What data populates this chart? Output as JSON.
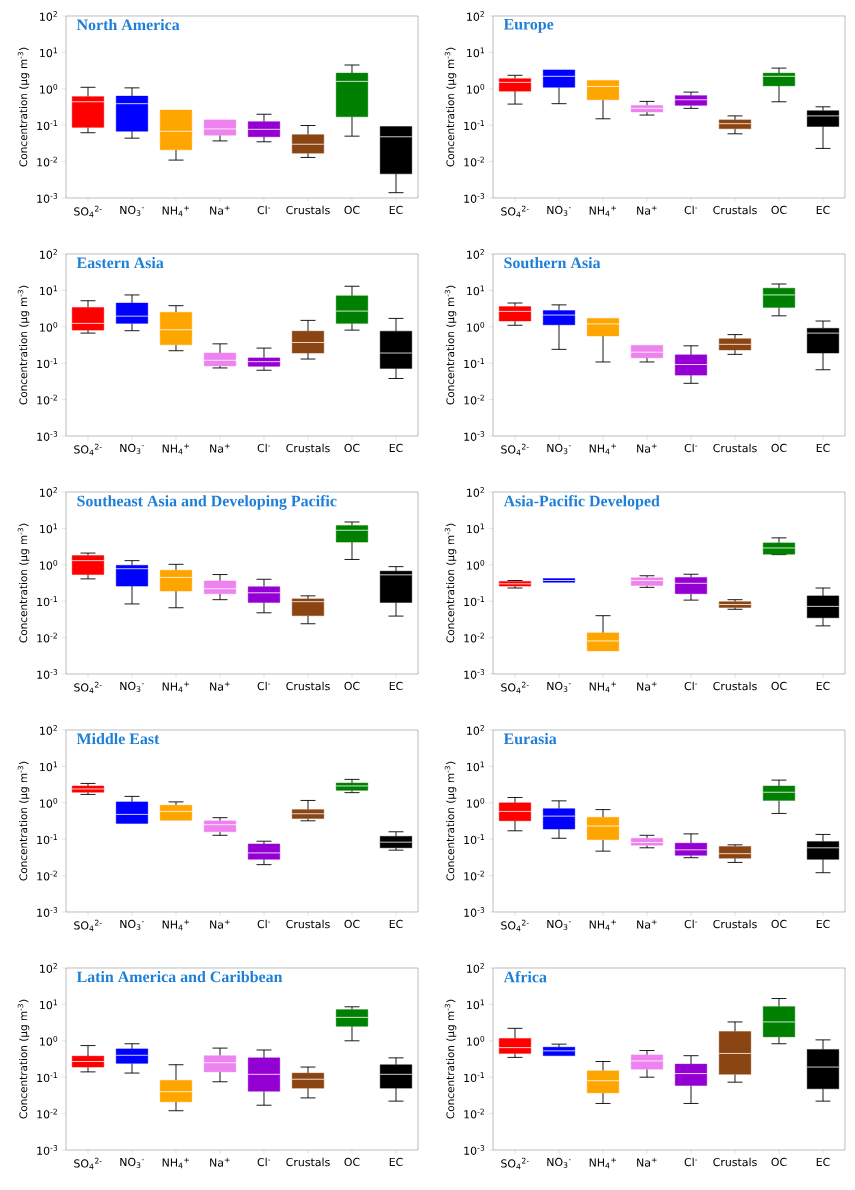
{
  "chart_data": [
    {
      "type": "box",
      "title": "North America",
      "ylabel": "Concentration (μg m$^{-3}$)",
      "log": true,
      "ylim": [
        0.001,
        100
      ],
      "yticks": [
        {
          "value": 0.001,
          "label": "10$^{-3}$"
        },
        {
          "value": 0.01,
          "label": "10$^{-2}$"
        },
        {
          "value": 0.1,
          "label": "10$^{-1}$"
        },
        {
          "value": 1,
          "label": "10$^{0}$"
        },
        {
          "value": 10,
          "label": "10$^{1}$"
        },
        {
          "value": 100,
          "label": "10$^{2}$"
        }
      ],
      "categories": [
        "SO$_{4}$$^{2-}$",
        "NO$_{3}$$^{-}$",
        "NH$_{4}$$^{+}$",
        "Na$^{+}$",
        "Cl$^{-}$",
        "Crustals",
        "OC",
        "EC"
      ],
      "colors": [
        "#ff0000",
        "#0000ff",
        "#ffa500",
        "#ee82ee",
        "#9400d3",
        "#8b4513",
        "#008000",
        "#000000"
      ],
      "boxes": [
        {
          "low": 0.062,
          "q1": 0.087,
          "median": 0.44,
          "q3": 0.61,
          "high": 1.1
        },
        {
          "low": 0.044,
          "q1": 0.068,
          "median": 0.39,
          "q3": 0.63,
          "high": 1.06
        },
        {
          "low": 0.011,
          "q1": 0.021,
          "median": 0.068,
          "q3": 0.26,
          "high": 0.26
        },
        {
          "low": 0.037,
          "q1": 0.053,
          "median": 0.079,
          "q3": 0.14,
          "high": 0.14
        },
        {
          "low": 0.035,
          "q1": 0.048,
          "median": 0.077,
          "q3": 0.125,
          "high": 0.2
        },
        {
          "low": 0.013,
          "q1": 0.017,
          "median": 0.03,
          "q3": 0.055,
          "high": 0.098
        },
        {
          "low": 0.05,
          "q1": 0.17,
          "median": 1.6,
          "q3": 2.7,
          "high": 4.5
        },
        {
          "low": 0.0014,
          "q1": 0.0046,
          "median": 0.048,
          "q3": 0.092,
          "high": 0.092
        }
      ]
    },
    {
      "type": "box",
      "title": "Europe",
      "ylabel": "Concentration (μg m$^{-3}$)",
      "log": true,
      "ylim": [
        0.001,
        100
      ],
      "yticks": [
        {
          "value": 0.001,
          "label": "10$^{-3}$"
        },
        {
          "value": 0.01,
          "label": "10$^{-2}$"
        },
        {
          "value": 0.1,
          "label": "10$^{-1}$"
        },
        {
          "value": 1,
          "label": "10$^{0}$"
        },
        {
          "value": 10,
          "label": "10$^{1}$"
        },
        {
          "value": 100,
          "label": "10$^{2}$"
        }
      ],
      "categories": [
        "SO$_{4}$$^{2-}$",
        "NO$_{3}$$^{-}$",
        "NH$_{4}$$^{+}$",
        "Na$^{+}$",
        "Cl$^{-}$",
        "Crustals",
        "OC",
        "EC"
      ],
      "colors": [
        "#ff0000",
        "#0000ff",
        "#ffa500",
        "#ee82ee",
        "#9400d3",
        "#8b4513",
        "#008000",
        "#000000"
      ],
      "boxes": [
        {
          "low": 0.38,
          "q1": 0.86,
          "median": 1.5,
          "q3": 1.9,
          "high": 2.35
        },
        {
          "low": 0.39,
          "q1": 1.1,
          "median": 2.2,
          "q3": 3.3,
          "high": 3.3
        },
        {
          "low": 0.15,
          "q1": 0.5,
          "median": 1.16,
          "q3": 1.7,
          "high": 1.7
        },
        {
          "low": 0.19,
          "q1": 0.23,
          "median": 0.29,
          "q3": 0.35,
          "high": 0.45
        },
        {
          "low": 0.29,
          "q1": 0.35,
          "median": 0.5,
          "q3": 0.65,
          "high": 0.81
        },
        {
          "low": 0.058,
          "q1": 0.08,
          "median": 0.11,
          "q3": 0.14,
          "high": 0.18
        },
        {
          "low": 0.44,
          "q1": 1.2,
          "median": 2.2,
          "q3": 2.7,
          "high": 3.7
        },
        {
          "low": 0.023,
          "q1": 0.092,
          "median": 0.18,
          "q3": 0.25,
          "high": 0.32
        }
      ]
    },
    {
      "type": "box",
      "title": "Eastern Asia",
      "ylabel": "Concentration (μg m$^{-3}$)",
      "log": true,
      "ylim": [
        0.001,
        100
      ],
      "yticks": [
        {
          "value": 0.001,
          "label": "10$^{-3}$"
        },
        {
          "value": 0.01,
          "label": "10$^{-2}$"
        },
        {
          "value": 0.1,
          "label": "10$^{-1}$"
        },
        {
          "value": 1,
          "label": "10$^{0}$"
        },
        {
          "value": 10,
          "label": "10$^{1}$"
        },
        {
          "value": 100,
          "label": "10$^{2}$"
        }
      ],
      "categories": [
        "SO$_{4}$$^{2-}$",
        "NO$_{3}$$^{-}$",
        "NH$_{4}$$^{+}$",
        "Na$^{+}$",
        "Cl$^{-}$",
        "Crustals",
        "OC",
        "EC"
      ],
      "colors": [
        "#ff0000",
        "#0000ff",
        "#ffa500",
        "#ee82ee",
        "#9400d3",
        "#8b4513",
        "#008000",
        "#000000"
      ],
      "boxes": [
        {
          "low": 0.67,
          "q1": 0.81,
          "median": 1.24,
          "q3": 3.4,
          "high": 5.2
        },
        {
          "low": 0.78,
          "q1": 1.24,
          "median": 1.96,
          "q3": 4.5,
          "high": 7.5
        },
        {
          "low": 0.22,
          "q1": 0.32,
          "median": 0.83,
          "q3": 2.5,
          "high": 3.8
        },
        {
          "low": 0.074,
          "q1": 0.084,
          "median": 0.12,
          "q3": 0.19,
          "high": 0.34
        },
        {
          "low": 0.064,
          "q1": 0.082,
          "median": 0.11,
          "q3": 0.14,
          "high": 0.26
        },
        {
          "low": 0.13,
          "q1": 0.19,
          "median": 0.37,
          "q3": 0.76,
          "high": 1.5
        },
        {
          "low": 0.81,
          "q1": 1.24,
          "median": 2.7,
          "q3": 7.1,
          "high": 13
        },
        {
          "low": 0.038,
          "q1": 0.072,
          "median": 0.19,
          "q3": 0.76,
          "high": 1.7
        }
      ]
    },
    {
      "type": "box",
      "title": "Southern Asia",
      "ylabel": "Concentration (μg m$^{-3}$)",
      "log": true,
      "ylim": [
        0.001,
        100
      ],
      "yticks": [
        {
          "value": 0.001,
          "label": "10$^{-3}$"
        },
        {
          "value": 0.01,
          "label": "10$^{-2}$"
        },
        {
          "value": 0.1,
          "label": "10$^{-1}$"
        },
        {
          "value": 1,
          "label": "10$^{0}$"
        },
        {
          "value": 10,
          "label": "10$^{1}$"
        },
        {
          "value": 100,
          "label": "10$^{2}$"
        }
      ],
      "categories": [
        "SO$_{4}$$^{2-}$",
        "NO$_{3}$$^{-}$",
        "NH$_{4}$$^{+}$",
        "Na$^{+}$",
        "Cl$^{-}$",
        "Crustals",
        "OC",
        "EC"
      ],
      "colors": [
        "#ff0000",
        "#0000ff",
        "#ffa500",
        "#ee82ee",
        "#9400d3",
        "#8b4513",
        "#008000",
        "#000000"
      ],
      "boxes": [
        {
          "low": 1.1,
          "q1": 1.44,
          "median": 2.65,
          "q3": 3.6,
          "high": 4.5
        },
        {
          "low": 0.24,
          "q1": 1.13,
          "median": 2.1,
          "q3": 2.8,
          "high": 4
        },
        {
          "low": 0.108,
          "q1": 0.56,
          "median": 1.2,
          "q3": 1.7,
          "high": 1.7
        },
        {
          "low": 0.108,
          "q1": 0.14,
          "median": 0.2,
          "q3": 0.31,
          "high": 0.31
        },
        {
          "low": 0.028,
          "q1": 0.047,
          "median": 0.092,
          "q3": 0.17,
          "high": 0.3
        },
        {
          "low": 0.175,
          "q1": 0.23,
          "median": 0.33,
          "q3": 0.47,
          "high": 0.61
        },
        {
          "low": 2.0,
          "q1": 3.4,
          "median": 7.5,
          "q3": 11.5,
          "high": 15
        },
        {
          "low": 0.066,
          "q1": 0.19,
          "median": 0.67,
          "q3": 0.91,
          "high": 1.44
        }
      ]
    },
    {
      "type": "box",
      "title": "Southeast Asia and Developing Pacific",
      "ylabel": "Concentration (μg m$^{-3}$)",
      "log": true,
      "ylim": [
        0.001,
        100
      ],
      "yticks": [
        {
          "value": 0.001,
          "label": "10$^{-3}$"
        },
        {
          "value": 0.01,
          "label": "10$^{-2}$"
        },
        {
          "value": 0.1,
          "label": "10$^{-1}$"
        },
        {
          "value": 1,
          "label": "10$^{0}$"
        },
        {
          "value": 10,
          "label": "10$^{1}$"
        },
        {
          "value": 100,
          "label": "10$^{2}$"
        }
      ],
      "categories": [
        "SO$_{4}$$^{2-}$",
        "NO$_{3}$$^{-}$",
        "NH$_{4}$$^{+}$",
        "Na$^{+}$",
        "Cl$^{-}$",
        "Crustals",
        "OC",
        "EC"
      ],
      "colors": [
        "#ff0000",
        "#0000ff",
        "#ffa500",
        "#ee82ee",
        "#9400d3",
        "#8b4513",
        "#008000",
        "#000000"
      ],
      "boxes": [
        {
          "low": 0.41,
          "q1": 0.54,
          "median": 1.3,
          "q3": 1.8,
          "high": 2.1
        },
        {
          "low": 0.084,
          "q1": 0.26,
          "median": 0.78,
          "q3": 0.97,
          "high": 1.3
        },
        {
          "low": 0.066,
          "q1": 0.19,
          "median": 0.45,
          "q3": 0.71,
          "high": 1.03
        },
        {
          "low": 0.11,
          "q1": 0.16,
          "median": 0.22,
          "q3": 0.36,
          "high": 0.54
        },
        {
          "low": 0.048,
          "q1": 0.092,
          "median": 0.17,
          "q3": 0.25,
          "high": 0.4
        },
        {
          "low": 0.024,
          "q1": 0.04,
          "median": 0.097,
          "q3": 0.116,
          "high": 0.14
        },
        {
          "low": 1.4,
          "q1": 4.2,
          "median": 8.9,
          "q3": 12,
          "high": 15
        },
        {
          "low": 0.039,
          "q1": 0.092,
          "median": 0.53,
          "q3": 0.67,
          "high": 0.89
        }
      ]
    },
    {
      "type": "box",
      "title": "Asia-Pacific Developed",
      "ylabel": "Concentration (μg m$^{-3}$)",
      "log": true,
      "ylim": [
        0.001,
        100
      ],
      "yticks": [
        {
          "value": 0.001,
          "label": "10$^{-3}$"
        },
        {
          "value": 0.01,
          "label": "10$^{-2}$"
        },
        {
          "value": 0.1,
          "label": "10$^{-1}$"
        },
        {
          "value": 1,
          "label": "10$^{0}$"
        },
        {
          "value": 10,
          "label": "10$^{1}$"
        },
        {
          "value": 100,
          "label": "10$^{2}$"
        }
      ],
      "categories": [
        "SO$_{4}$$^{2-}$",
        "NO$_{3}$$^{-}$",
        "NH$_{4}$$^{+}$",
        "Na$^{+}$",
        "Cl$^{-}$",
        "Crustals",
        "OC",
        "EC"
      ],
      "colors": [
        "#ff0000",
        "#0000ff",
        "#ffa500",
        "#ee82ee",
        "#9400d3",
        "#8b4513",
        "#008000",
        "#000000"
      ],
      "boxes": [
        {
          "low": 0.23,
          "q1": 0.26,
          "median": 0.3,
          "q3": 0.35,
          "high": 0.37
        },
        {
          "low": 0.33,
          "q1": 0.33,
          "median": 0.37,
          "q3": 0.42,
          "high": 0.42
        },
        {
          "low": 0.0043,
          "q1": 0.0043,
          "median": 0.0081,
          "q3": 0.0135,
          "high": 0.04
        },
        {
          "low": 0.24,
          "q1": 0.27,
          "median": 0.37,
          "q3": 0.44,
          "high": 0.5
        },
        {
          "low": 0.107,
          "q1": 0.16,
          "median": 0.31,
          "q3": 0.45,
          "high": 0.55
        },
        {
          "low": 0.06,
          "q1": 0.067,
          "median": 0.081,
          "q3": 0.097,
          "high": 0.11
        },
        {
          "low": 1.9,
          "q1": 1.95,
          "median": 2.9,
          "q3": 4.0,
          "high": 5.5
        },
        {
          "low": 0.021,
          "q1": 0.035,
          "median": 0.072,
          "q3": 0.14,
          "high": 0.23
        }
      ]
    },
    {
      "type": "box",
      "title": "Middle East",
      "ylabel": "Concentration (μg m$^{-3}$)",
      "log": true,
      "ylim": [
        0.001,
        100
      ],
      "yticks": [
        {
          "value": 0.001,
          "label": "10$^{-3}$"
        },
        {
          "value": 0.01,
          "label": "10$^{-2}$"
        },
        {
          "value": 0.1,
          "label": "10$^{-1}$"
        },
        {
          "value": 1,
          "label": "10$^{0}$"
        },
        {
          "value": 10,
          "label": "10$^{1}$"
        },
        {
          "value": 100,
          "label": "10$^{2}$"
        }
      ],
      "categories": [
        "SO$_{4}$$^{2-}$",
        "NO$_{3}$$^{-}$",
        "NH$_{4}$$^{+}$",
        "Na$^{+}$",
        "Cl$^{-}$",
        "Crustals",
        "OC",
        "EC"
      ],
      "colors": [
        "#ff0000",
        "#0000ff",
        "#ffa500",
        "#ee82ee",
        "#9400d3",
        "#8b4513",
        "#008000",
        "#000000"
      ],
      "boxes": [
        {
          "low": 1.7,
          "q1": 1.95,
          "median": 2.4,
          "q3": 2.9,
          "high": 3.4
        },
        {
          "low": 0.27,
          "q1": 0.27,
          "median": 0.48,
          "q3": 1.06,
          "high": 1.5
        },
        {
          "low": 0.33,
          "q1": 0.33,
          "median": 0.58,
          "q3": 0.86,
          "high": 1.06
        },
        {
          "low": 0.128,
          "q1": 0.16,
          "median": 0.25,
          "q3": 0.32,
          "high": 0.39
        },
        {
          "low": 0.02,
          "q1": 0.028,
          "median": 0.042,
          "q3": 0.074,
          "high": 0.088
        },
        {
          "low": 0.32,
          "q1": 0.37,
          "median": 0.5,
          "q3": 0.65,
          "high": 1.16
        },
        {
          "low": 1.9,
          "q1": 2.2,
          "median": 2.9,
          "q3": 3.5,
          "high": 4.4
        },
        {
          "low": 0.05,
          "q1": 0.058,
          "median": 0.083,
          "q3": 0.12,
          "high": 0.16
        }
      ]
    },
    {
      "type": "box",
      "title": "Eurasia",
      "ylabel": "Concentration (μg m$^{-3}$)",
      "log": true,
      "ylim": [
        0.001,
        100
      ],
      "yticks": [
        {
          "value": 0.001,
          "label": "10$^{-3}$"
        },
        {
          "value": 0.01,
          "label": "10$^{-2}$"
        },
        {
          "value": 0.1,
          "label": "10$^{-1}$"
        },
        {
          "value": 1,
          "label": "10$^{0}$"
        },
        {
          "value": 10,
          "label": "10$^{1}$"
        },
        {
          "value": 100,
          "label": "10$^{2}$"
        }
      ],
      "categories": [
        "SO$_{4}$$^{2-}$",
        "NO$_{3}$$^{-}$",
        "NH$_{4}$$^{+}$",
        "Na$^{+}$",
        "Cl$^{-}$",
        "Crustals",
        "OC",
        "EC"
      ],
      "colors": [
        "#ff0000",
        "#0000ff",
        "#ffa500",
        "#ee82ee",
        "#9400d3",
        "#8b4513",
        "#008000",
        "#000000"
      ],
      "boxes": [
        {
          "low": 0.17,
          "q1": 0.32,
          "median": 0.58,
          "q3": 1.0,
          "high": 1.4
        },
        {
          "low": 0.106,
          "q1": 0.19,
          "median": 0.43,
          "q3": 0.69,
          "high": 1.13
        },
        {
          "low": 0.047,
          "q1": 0.097,
          "median": 0.23,
          "q3": 0.4,
          "high": 0.65
        },
        {
          "low": 0.058,
          "q1": 0.068,
          "median": 0.081,
          "q3": 0.106,
          "high": 0.128
        },
        {
          "low": 0.031,
          "q1": 0.036,
          "median": 0.051,
          "q3": 0.078,
          "high": 0.14
        },
        {
          "low": 0.023,
          "q1": 0.03,
          "median": 0.04,
          "q3": 0.063,
          "high": 0.07
        },
        {
          "low": 0.51,
          "q1": 1.16,
          "median": 1.95,
          "q3": 2.9,
          "high": 4.2
        },
        {
          "low": 0.012,
          "q1": 0.028,
          "median": 0.058,
          "q3": 0.086,
          "high": 0.135
        }
      ]
    },
    {
      "type": "box",
      "title": "Latin America and Caribbean",
      "ylabel": "Concentration (μg m$^{-3}$)",
      "log": true,
      "ylim": [
        0.001,
        100
      ],
      "yticks": [
        {
          "value": 0.001,
          "label": "10$^{-3}$"
        },
        {
          "value": 0.01,
          "label": "10$^{-2}$"
        },
        {
          "value": 0.1,
          "label": "10$^{-1}$"
        },
        {
          "value": 1,
          "label": "10$^{0}$"
        },
        {
          "value": 10,
          "label": "10$^{1}$"
        },
        {
          "value": 100,
          "label": "10$^{2}$"
        }
      ],
      "categories": [
        "SO$_{4}$$^{2-}$",
        "NO$_{3}$$^{-}$",
        "NH$_{4}$$^{+}$",
        "Na$^{+}$",
        "Cl$^{-}$",
        "Crustals",
        "OC",
        "EC"
      ],
      "colors": [
        "#ff0000",
        "#0000ff",
        "#ffa500",
        "#ee82ee",
        "#9400d3",
        "#8b4513",
        "#008000",
        "#000000"
      ],
      "boxes": [
        {
          "low": 0.14,
          "q1": 0.19,
          "median": 0.27,
          "q3": 0.38,
          "high": 0.74
        },
        {
          "low": 0.13,
          "q1": 0.24,
          "median": 0.4,
          "q3": 0.6,
          "high": 0.83
        },
        {
          "low": 0.012,
          "q1": 0.021,
          "median": 0.04,
          "q3": 0.082,
          "high": 0.22
        },
        {
          "low": 0.075,
          "q1": 0.14,
          "median": 0.25,
          "q3": 0.39,
          "high": 0.63
        },
        {
          "low": 0.017,
          "q1": 0.041,
          "median": 0.12,
          "q3": 0.34,
          "high": 0.56
        },
        {
          "low": 0.027,
          "q1": 0.05,
          "median": 0.088,
          "q3": 0.13,
          "high": 0.19
        },
        {
          "low": 1.0,
          "q1": 2.5,
          "median": 4.4,
          "q3": 7.2,
          "high": 8.6
        },
        {
          "low": 0.022,
          "q1": 0.05,
          "median": 0.12,
          "q3": 0.22,
          "high": 0.34
        }
      ]
    },
    {
      "type": "box",
      "title": "Africa",
      "ylabel": "Concentration (μg m$^{-3}$)",
      "log": true,
      "ylim": [
        0.001,
        100
      ],
      "yticks": [
        {
          "value": 0.001,
          "label": "10$^{-3}$"
        },
        {
          "value": 0.01,
          "label": "10$^{-2}$"
        },
        {
          "value": 0.1,
          "label": "10$^{-1}$"
        },
        {
          "value": 1,
          "label": "10$^{0}$"
        },
        {
          "value": 10,
          "label": "10$^{1}$"
        },
        {
          "value": 100,
          "label": "10$^{2}$"
        }
      ],
      "categories": [
        "SO$_{4}$$^{2-}$",
        "NO$_{3}$$^{-}$",
        "NH$_{4}$$^{+}$",
        "Na$^{+}$",
        "Cl$^{-}$",
        "Crustals",
        "OC",
        "EC"
      ],
      "colors": [
        "#ff0000",
        "#0000ff",
        "#ffa500",
        "#ee82ee",
        "#9400d3",
        "#8b4513",
        "#008000",
        "#000000"
      ],
      "boxes": [
        {
          "low": 0.35,
          "q1": 0.45,
          "median": 0.65,
          "q3": 1.16,
          "high": 2.2
        },
        {
          "low": 0.39,
          "q1": 0.39,
          "median": 0.53,
          "q3": 0.67,
          "high": 0.81
        },
        {
          "low": 0.019,
          "q1": 0.037,
          "median": 0.08,
          "q3": 0.15,
          "high": 0.27
        },
        {
          "low": 0.1,
          "q1": 0.166,
          "median": 0.28,
          "q3": 0.41,
          "high": 0.54
        },
        {
          "low": 0.019,
          "q1": 0.059,
          "median": 0.126,
          "q3": 0.23,
          "high": 0.39
        },
        {
          "low": 0.073,
          "q1": 0.12,
          "median": 0.45,
          "q3": 1.8,
          "high": 3.3
        },
        {
          "low": 0.83,
          "q1": 1.28,
          "median": 3.3,
          "q3": 8.7,
          "high": 14.5
        },
        {
          "low": 0.022,
          "q1": 0.048,
          "median": 0.19,
          "q3": 0.58,
          "high": 1.06
        }
      ]
    }
  ]
}
